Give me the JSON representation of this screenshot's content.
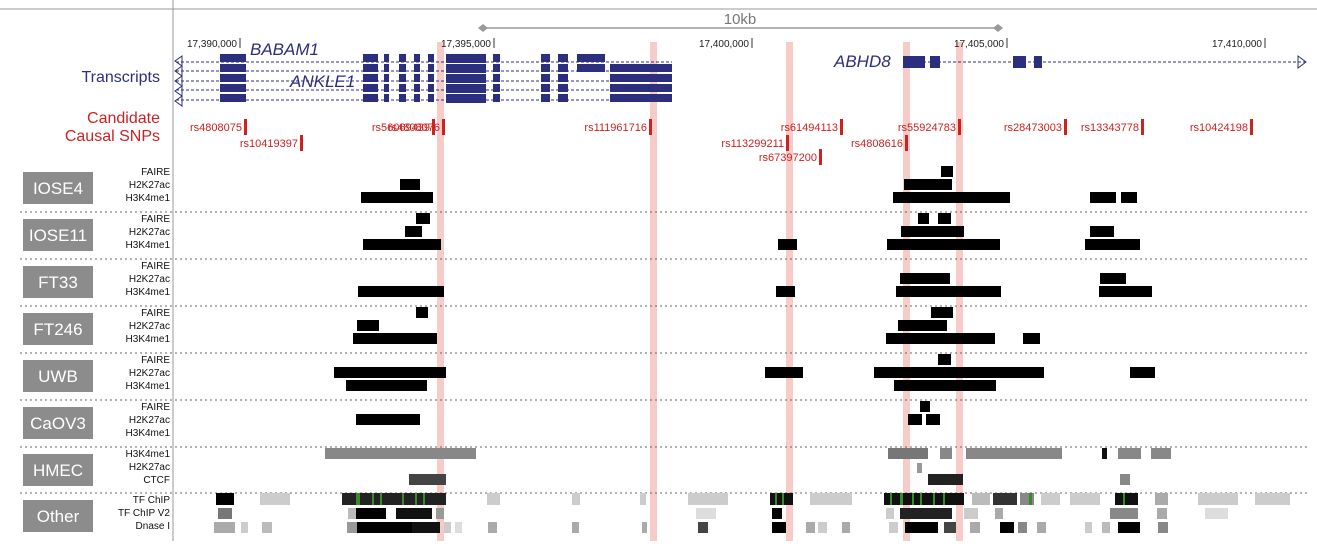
{
  "scale": {
    "label": "10kb",
    "coords": [
      "17,390,000",
      "17,395,000",
      "17,400,000",
      "17,405,000",
      "17,410,000"
    ]
  },
  "tracks": {
    "transcripts_label": "Transcripts",
    "snps_label_line1": "Candidate",
    "snps_label_line2": "Causal SNPs"
  },
  "genes": [
    "BABAM1",
    "ANKLE1",
    "ABHD8"
  ],
  "snps": [
    "rs4808075",
    "rs10419397",
    "rs56069439",
    "rs4808076",
    "rs111961716",
    "rs113299211",
    "rs67397200",
    "rs61494113",
    "rs4808616",
    "rs55924783",
    "rs28473003",
    "rs13343778",
    "rs10424198"
  ],
  "marks": [
    "FAIRE",
    "H2K27ac",
    "H3K4me1"
  ],
  "cell_lines": [
    {
      "name": "IOSE4",
      "marks": [
        "FAIRE",
        "H2K27ac",
        "H3K4me1"
      ]
    },
    {
      "name": "IOSE11",
      "marks": [
        "FAIRE",
        "H2K27ac",
        "H3K4me1"
      ]
    },
    {
      "name": "FT33",
      "marks": [
        "FAIRE",
        "H2K27ac",
        "H3K4me1"
      ]
    },
    {
      "name": "FT246",
      "marks": [
        "FAIRE",
        "H2K27ac",
        "H3K4me1"
      ]
    },
    {
      "name": "UWB",
      "marks": [
        "FAIRE",
        "H2K27ac",
        "H3K4me1"
      ]
    },
    {
      "name": "CaOV3",
      "marks": [
        "FAIRE",
        "H2K27ac",
        "H3K4me1"
      ]
    },
    {
      "name": "HMEC",
      "marks": [
        "H3K4me1",
        "H2K27ac",
        "CTCF"
      ]
    },
    {
      "name": "Other",
      "marks": [
        "TF ChIP",
        "TF ChIP V2",
        "Dnase I"
      ]
    }
  ],
  "colors": {
    "gene": "#2b2f7e",
    "snp": "#cc2222",
    "highlight": "#f4b9b4",
    "label_box": "#8c8c8c",
    "peak": "#000000",
    "hmec": "#7f7f7f"
  }
}
